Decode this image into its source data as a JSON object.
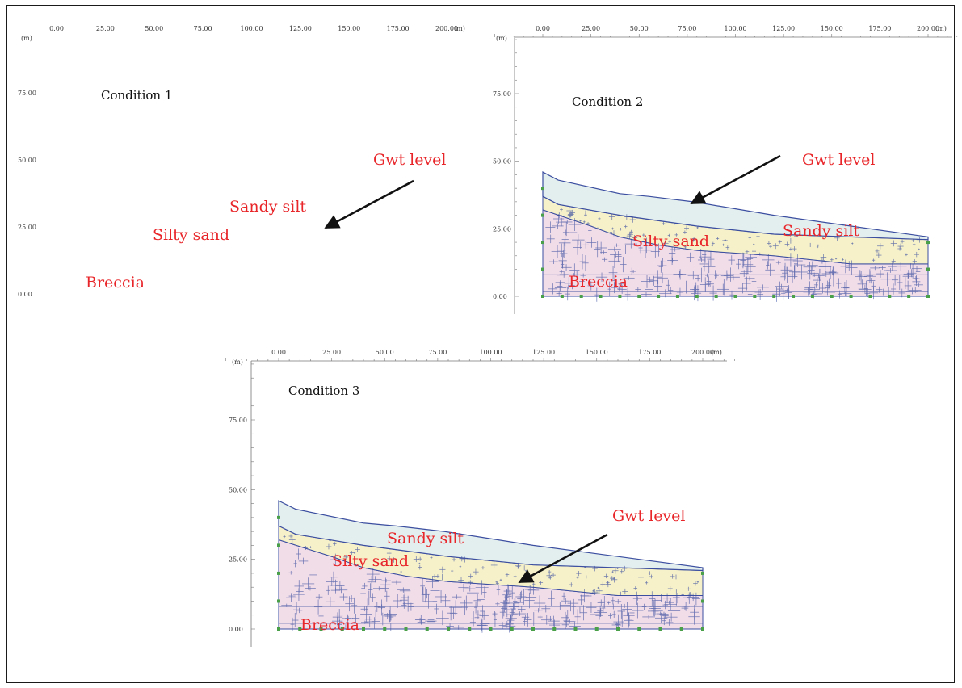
{
  "colors": {
    "label": "#e8262a",
    "sandy_silt_fill": "#e3eeee",
    "silty_sand_fill": "#f6f1c9",
    "breccia_fill": "#f1dde8",
    "mesh_line": "#3b4ea0",
    "node": "#49a049"
  },
  "axis": {
    "x_ticks": [
      "0.00",
      "25.00",
      "50.00",
      "75.00",
      "100.00",
      "125.00",
      "150.00",
      "175.00",
      "200.00"
    ],
    "y_ticks": [
      "75.00",
      "50.00",
      "25.00",
      "0.00"
    ],
    "unit": "(m)"
  },
  "panels": [
    {
      "id": "p1",
      "title": "Condition 1",
      "labels": {
        "gwt": "Gwt level",
        "sandy_silt": "Sandy silt",
        "silty_sand": "Silty sand",
        "breccia": "Breccia"
      }
    },
    {
      "id": "p2",
      "title": "Condition 2",
      "labels": {
        "gwt": "Gwt level",
        "sandy_silt": "Sandy silt",
        "silty_sand": "Silty sand",
        "breccia": "Breccia"
      }
    },
    {
      "id": "p3",
      "title": "Condition 3",
      "labels": {
        "gwt": "Gwt level",
        "sandy_silt": "Sandy silt",
        "silty_sand": "Silty sand",
        "breccia": "Breccia"
      }
    }
  ]
}
